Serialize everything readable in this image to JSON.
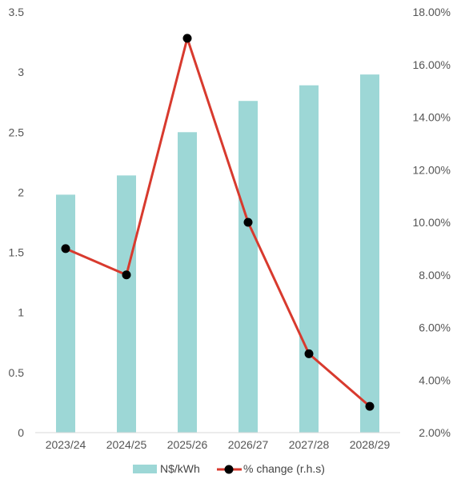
{
  "chart_data": {
    "type": "bar",
    "categories": [
      "2023/24",
      "2024/25",
      "2025/26",
      "2026/27",
      "2027/28",
      "2028/29"
    ],
    "series": [
      {
        "name": "N$/kWh",
        "type": "bar",
        "axis": "left",
        "color": "#9dd7d6",
        "values": [
          1.98,
          2.14,
          2.5,
          2.76,
          2.89,
          2.98
        ]
      },
      {
        "name": "% change (r.h.s)",
        "type": "line",
        "axis": "right",
        "color": "#d83a2e",
        "marker_color": "#000000",
        "values": [
          9.0,
          8.0,
          17.0,
          10.0,
          5.0,
          3.0
        ]
      }
    ],
    "y_left": {
      "ylim": [
        0,
        3.5
      ],
      "ticks": [
        0,
        0.5,
        1,
        1.5,
        2,
        2.5,
        3,
        3.5
      ],
      "tick_labels": [
        "0",
        "0.5",
        "1",
        "1.5",
        "2",
        "2.5",
        "3",
        "3.5"
      ]
    },
    "y_right": {
      "ylim": [
        2,
        18
      ],
      "ticks": [
        2,
        4,
        6,
        8,
        10,
        12,
        14,
        16,
        18
      ],
      "tick_labels": [
        "2.00%",
        "4.00%",
        "6.00%",
        "8.00%",
        "10.00%",
        "12.00%",
        "14.00%",
        "16.00%",
        "18.00%"
      ]
    },
    "title": "",
    "xlabel": "",
    "ylabel": "",
    "grid": false,
    "legend_position": "bottom"
  }
}
